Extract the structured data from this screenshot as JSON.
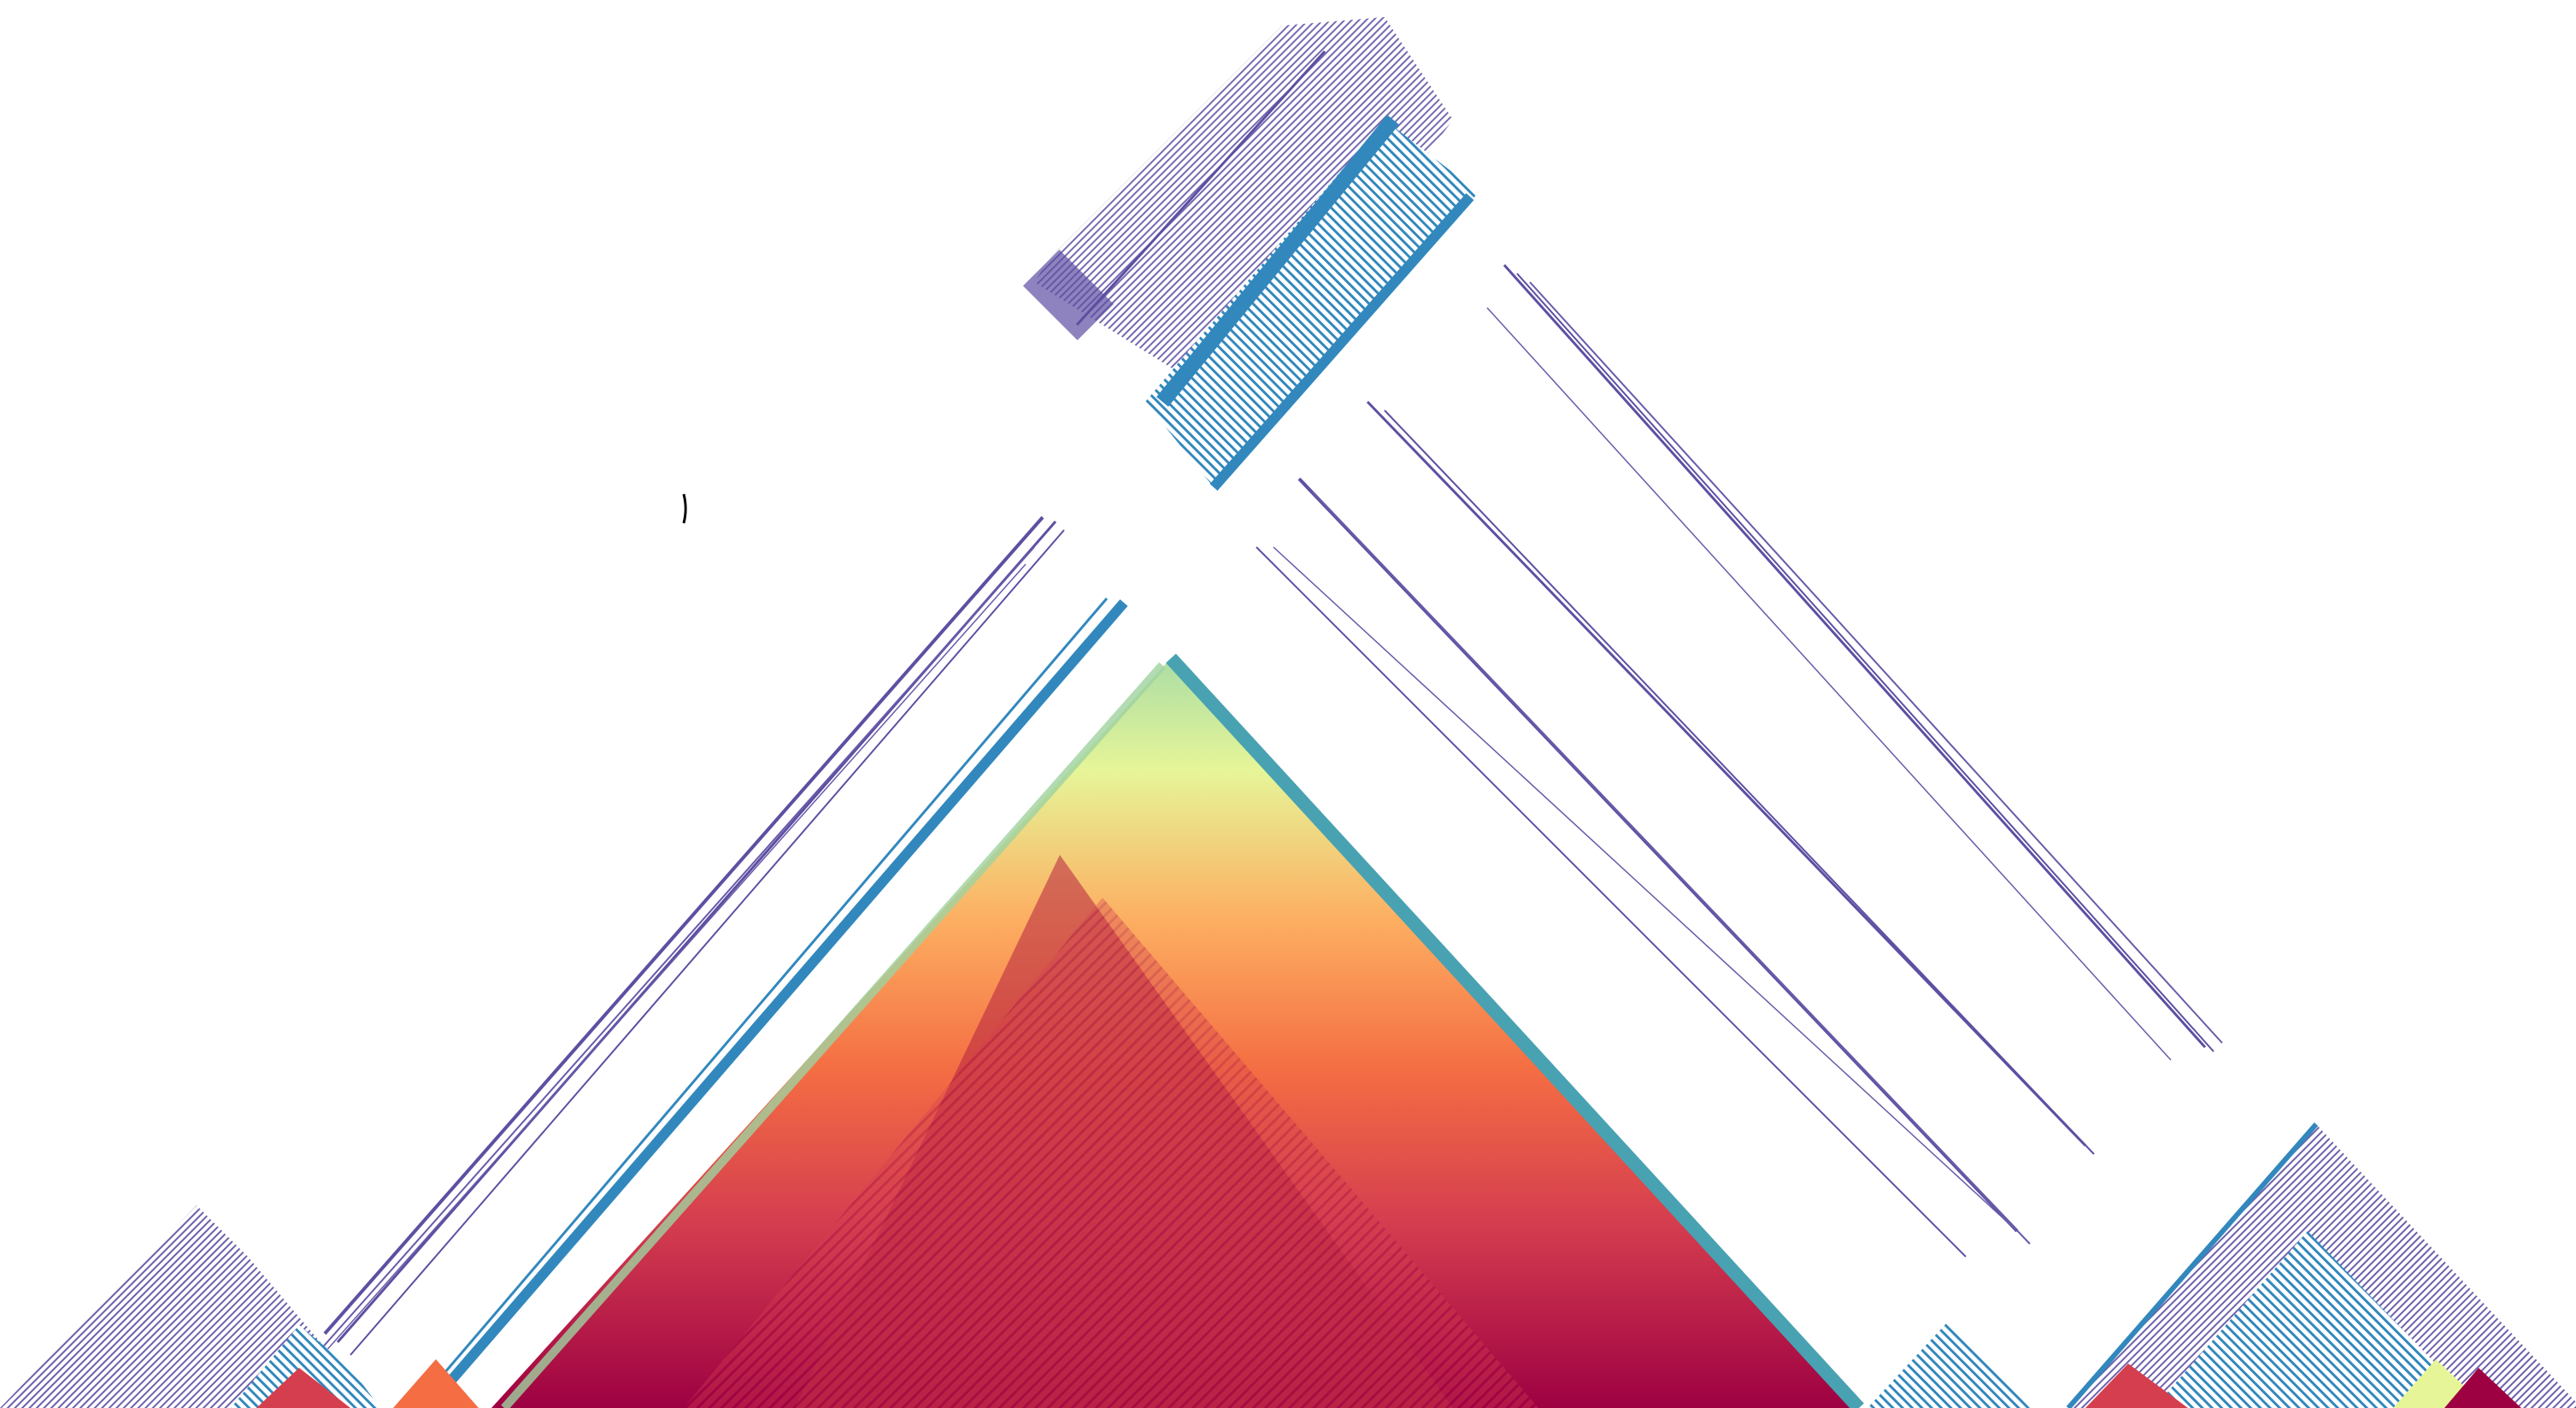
{
  "figure": {
    "type": "linkage-disequilibrium triangle heatmap",
    "colors": {
      "background": "#ffffff",
      "strongest": "#9e0142",
      "strong": "#d53e4f",
      "high": "#f46d43",
      "mid_high": "#fdae61",
      "mid": "#fee08b",
      "mid_low": "#e6f598",
      "low": "#abdda4",
      "lower": "#66c2a5",
      "weak": "#3288bd",
      "weakest": "#5e4fa2"
    },
    "cursor_mark": {
      "icon": "cursor-mark-icon",
      "color": "#000000"
    }
  }
}
